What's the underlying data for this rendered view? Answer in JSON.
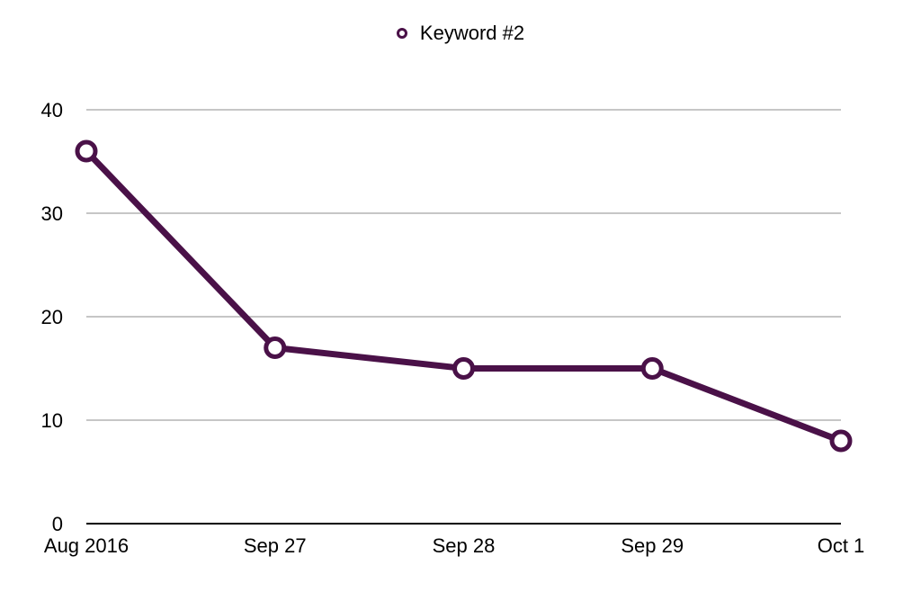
{
  "chart_data": {
    "type": "line",
    "categories": [
      "Aug 2016",
      "Sep 27",
      "Sep 28",
      "Sep 29",
      "Oct 1"
    ],
    "series": [
      {
        "name": "Keyword #2",
        "values": [
          36,
          17,
          15,
          15,
          8
        ],
        "color": "#4a1148"
      }
    ],
    "yticks": [
      "0",
      "10",
      "20",
      "30",
      "40"
    ],
    "ylim": [
      0,
      40
    ],
    "grid": true,
    "legend_position": "top-center"
  }
}
